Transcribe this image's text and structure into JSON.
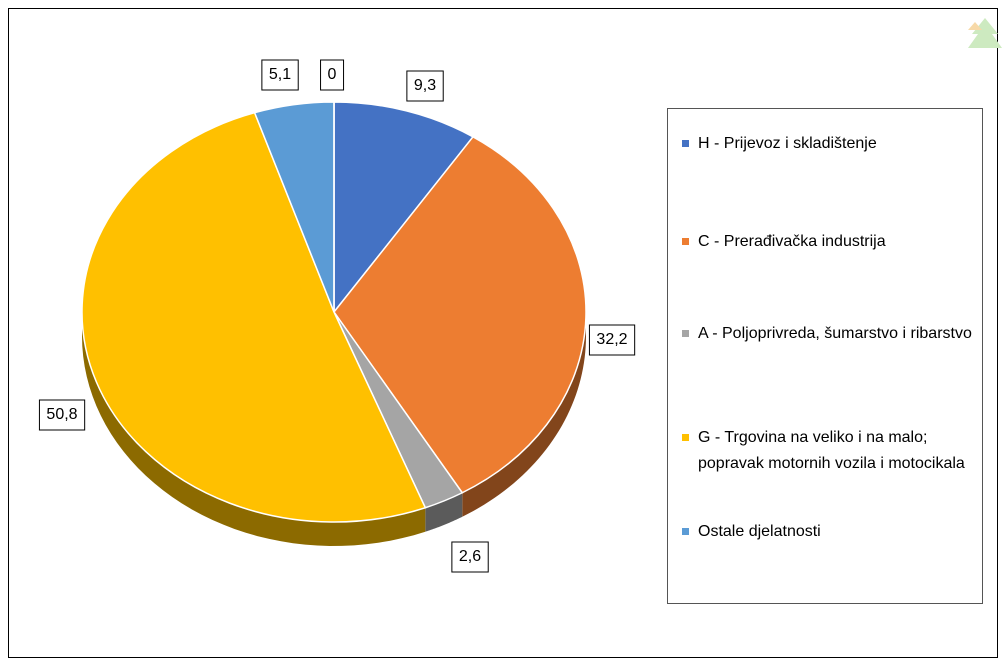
{
  "chart_data": {
    "type": "pie",
    "categories": [
      "H - Prijevoz i skladištenje",
      "C - Prerađivačka industrija",
      "A - Poljoprivreda, šumarstvo i ribarstvo",
      "G - Trgovina na veliko i na malo; popravak motornih vozila i motocikala",
      "Ostale djelatnosti",
      null
    ],
    "values": [
      9.3,
      32.2,
      2.6,
      50.8,
      5.1,
      0
    ],
    "value_labels": [
      "9,3",
      "32,2",
      "2,6",
      "50,8",
      "5,1",
      "0"
    ],
    "colors": [
      "#4472c4",
      "#ed7d31",
      "#a5a5a5",
      "#ffc000",
      "#5b9bd5",
      "#264478"
    ]
  }
}
